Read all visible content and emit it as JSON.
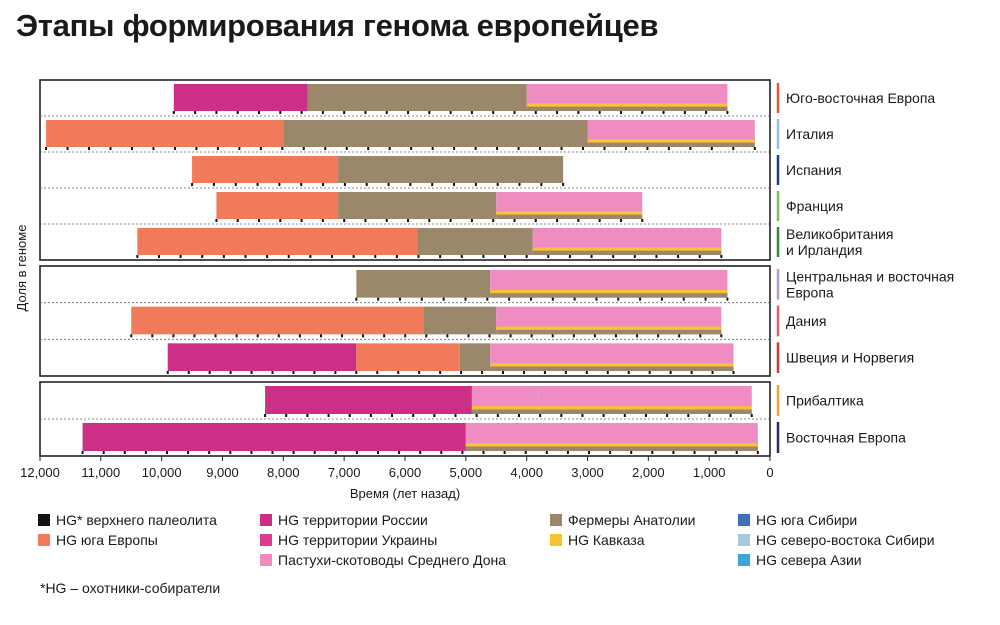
{
  "title": "Этапы формирования генома европейцев",
  "footnote": "*HG – охотники-собиратели",
  "colors": {
    "upper_pal": "#111111",
    "south_eu": "#f07a5a",
    "russia": "#cc2f86",
    "ukraine": "#dd3a92",
    "don": "#ef8cc2",
    "anatolia": "#9b8769",
    "caucasus": "#f7c233",
    "s_siberia": "#3f6fb5",
    "ne_siberia": "#a9c8de",
    "n_asia": "#3aa7d8",
    "accent_lines": [
      "#e8562a",
      "#8fc3e6",
      "#1f3d7a",
      "#7fbf5a",
      "#2f8a3a",
      "#b89cc8",
      "#e85a70",
      "#c83a30",
      "#f0a030",
      "#2a2a6e"
    ]
  },
  "legend": [
    {
      "key": "upper_pal",
      "label": "HG* верхнего палеолита"
    },
    {
      "key": "south_eu",
      "label": "HG юга Европы"
    },
    {
      "key": "russia",
      "label": "HG территории России"
    },
    {
      "key": "ukraine",
      "label": "HG территории Украины"
    },
    {
      "key": "don",
      "label": "Пастухи-скотоводы Среднего Дона"
    },
    {
      "key": "anatolia",
      "label": "Фермеры Анатолии"
    },
    {
      "key": "caucasus",
      "label": "HG Кавказа"
    },
    {
      "key": "s_siberia",
      "label": "HG юга Сибири"
    },
    {
      "key": "ne_siberia",
      "label": "HG северо-востока Сибири"
    },
    {
      "key": "n_asia",
      "label": "HG севера Азии"
    }
  ],
  "chart_data": {
    "type": "area",
    "title": "Этапы формирования генома европейцев",
    "xlabel": "Время (лет назад)",
    "ylabel": "Доля в геноме",
    "xlim": [
      12000,
      0
    ],
    "x_ticks": [
      12000,
      11000,
      10000,
      9000,
      8000,
      7000,
      6000,
      5000,
      4000,
      3000,
      2000,
      1000,
      0
    ],
    "x_tick_labels": [
      "12,000",
      "11,000",
      "10,000",
      "9,000",
      "8,000",
      "7,000",
      "6,000",
      "5,000",
      "4,000",
      "3,000",
      "2,000",
      "1,000",
      "0"
    ],
    "groups": [
      {
        "regions": [
          {
            "name": "Юго-восточная Европа",
            "start": 9800,
            "end": 700,
            "segments": [
              [
                9800,
                7600,
                "russia"
              ],
              [
                7600,
                4000,
                "anatolia"
              ],
              [
                4000,
                700,
                "don"
              ]
            ]
          },
          {
            "name": "Италия",
            "start": 11900,
            "end": 250,
            "segments": [
              [
                11900,
                8000,
                "south_eu"
              ],
              [
                8000,
                3000,
                "anatolia"
              ],
              [
                3000,
                250,
                "don"
              ]
            ]
          },
          {
            "name": "Испания",
            "start": 9500,
            "end": 3400,
            "segments": [
              [
                9500,
                7100,
                "south_eu"
              ],
              [
                7100,
                3400,
                "anatolia"
              ]
            ]
          },
          {
            "name": "Франция",
            "start": 9100,
            "end": 2100,
            "segments": [
              [
                9100,
                7100,
                "south_eu"
              ],
              [
                7100,
                4500,
                "anatolia"
              ],
              [
                4500,
                2100,
                "don"
              ]
            ]
          },
          {
            "name": "Великобритания\nи Ирландия",
            "start": 10400,
            "end": 800,
            "segments": [
              [
                10400,
                5800,
                "south_eu"
              ],
              [
                5800,
                3900,
                "anatolia"
              ],
              [
                3900,
                800,
                "don"
              ]
            ]
          }
        ]
      },
      {
        "regions": [
          {
            "name": "Центральная и восточная\nЕвропа",
            "start": 6800,
            "end": 700,
            "segments": [
              [
                6800,
                4600,
                "anatolia"
              ],
              [
                4600,
                700,
                "don"
              ]
            ]
          },
          {
            "name": "Дания",
            "start": 10500,
            "end": 800,
            "segments": [
              [
                10500,
                5700,
                "south_eu"
              ],
              [
                5700,
                4500,
                "anatolia"
              ],
              [
                4500,
                800,
                "don"
              ]
            ]
          },
          {
            "name": "Швеция и Норвегия",
            "start": 9900,
            "end": 600,
            "segments": [
              [
                9900,
                6800,
                "russia"
              ],
              [
                6800,
                5100,
                "south_eu"
              ],
              [
                5100,
                4600,
                "anatolia"
              ],
              [
                4600,
                600,
                "don"
              ]
            ]
          }
        ]
      },
      {
        "regions": [
          {
            "name": "Прибалтика",
            "start": 8300,
            "end": 300,
            "segments": [
              [
                8300,
                4900,
                "russia"
              ],
              [
                4900,
                3800,
                "don"
              ],
              [
                3800,
                300,
                "don"
              ]
            ]
          },
          {
            "name": "Восточная Европа",
            "start": 11300,
            "end": 200,
            "segments": [
              [
                11300,
                5000,
                "russia"
              ],
              [
                5000,
                200,
                "don"
              ]
            ]
          }
        ]
      }
    ]
  }
}
